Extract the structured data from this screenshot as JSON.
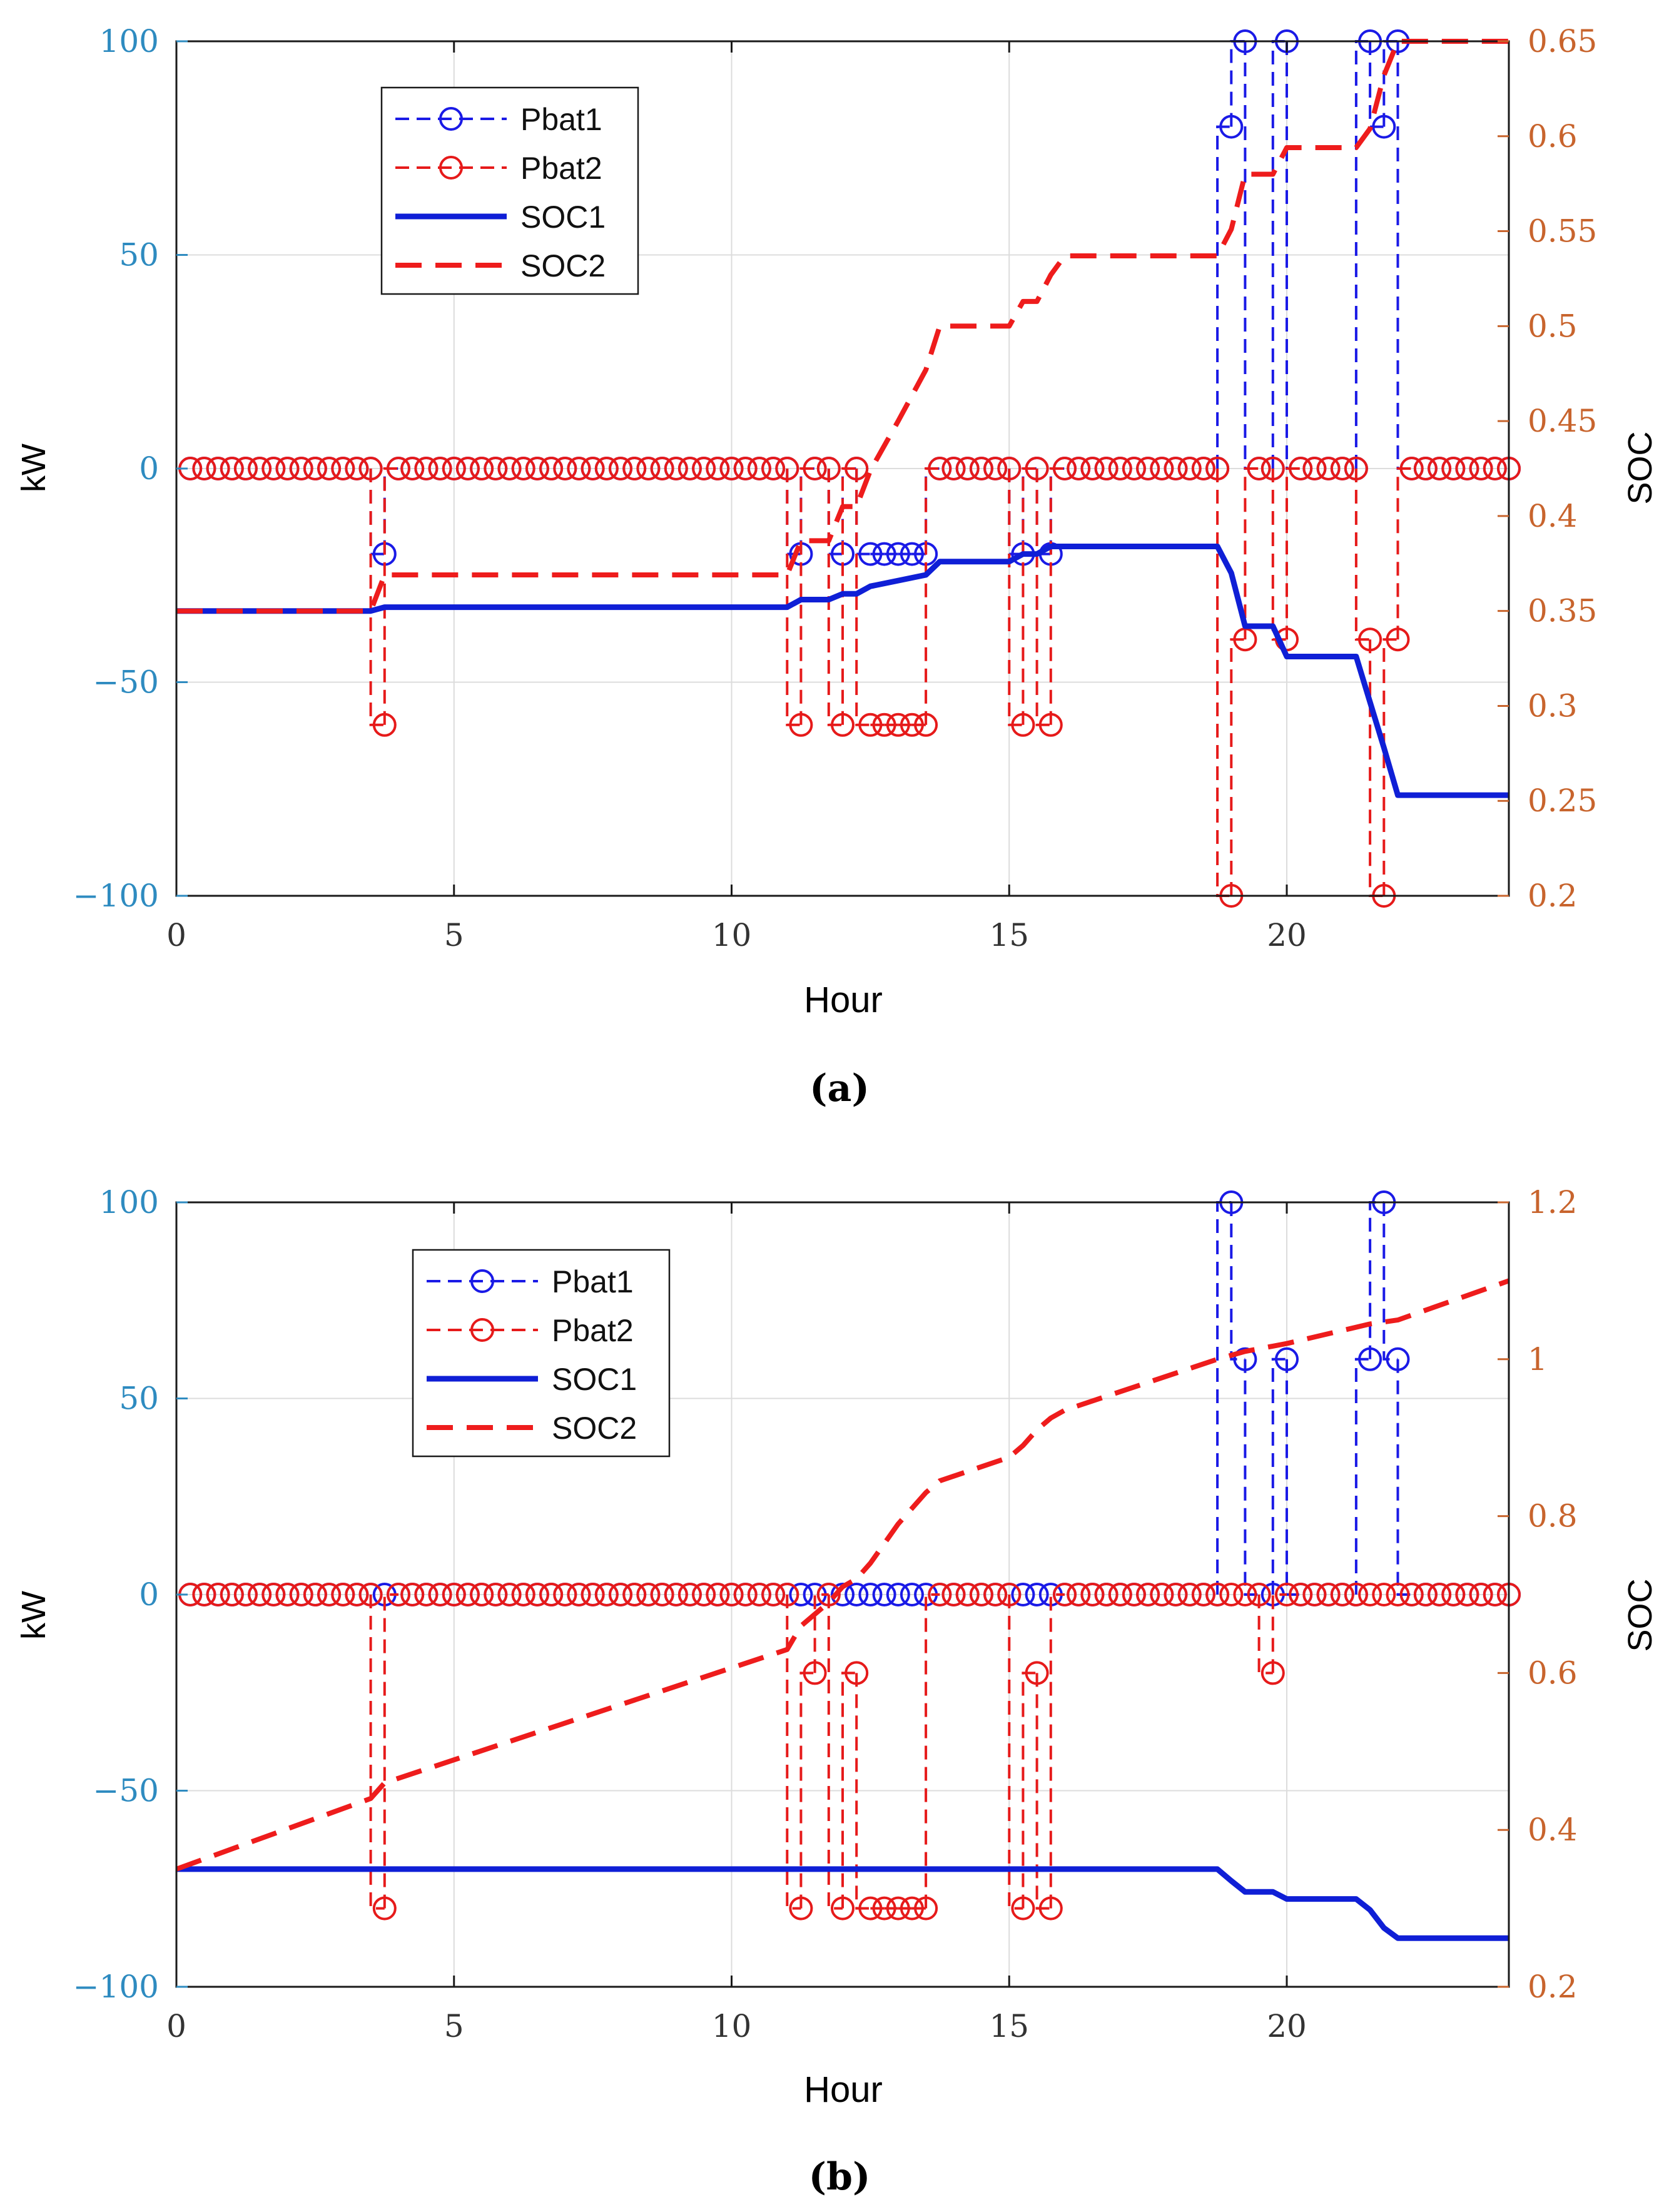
{
  "colors": {
    "left_axis": "#2e8bc0",
    "right_axis": "#c8642d",
    "pbat1": "#1a1ae6",
    "pbat2": "#e61a1a",
    "soc1": "#0f1fd6",
    "soc2": "#ee1c1c",
    "grid": "#dcdcdc",
    "axes": "#1a1a1a"
  },
  "chart_data": [
    {
      "type": "line",
      "caption": "(a)",
      "xlabel": "Hour",
      "ylabel_left": "kW",
      "ylabel_right": "SOC",
      "xlim": [
        0,
        24
      ],
      "xticks": [
        0,
        5,
        10,
        15,
        20
      ],
      "ylim_left": [
        -100,
        100
      ],
      "yticks_left": [
        100,
        50,
        0,
        -50,
        -100
      ],
      "ytick_labels_left": [
        "100",
        "50",
        "0",
        "−50",
        "−100"
      ],
      "ylim_right": [
        0.2,
        0.65
      ],
      "yticks_right": [
        0.65,
        0.6,
        0.55,
        0.5,
        0.45,
        0.4,
        0.35,
        0.3,
        0.25,
        0.2
      ],
      "ytick_labels_right": [
        "0.65",
        "0.6",
        "0.55",
        "0.5",
        "0.45",
        "0.4",
        "0.35",
        "0.3",
        "0.25",
        "0.2"
      ],
      "grid": true,
      "legend_position": "top-left",
      "legend": [
        "Pbat1",
        "Pbat2",
        "SOC1",
        "SOC2"
      ],
      "series": [
        {
          "name": "Pbat1",
          "axis": "left",
          "style": "dashed-circle",
          "points": [
            [
              3.75,
              -20
            ],
            [
              11.25,
              -20
            ],
            [
              12,
              -20
            ],
            [
              12.5,
              -20
            ],
            [
              12.75,
              -20
            ],
            [
              13,
              -20
            ],
            [
              13.25,
              -20
            ],
            [
              13.5,
              -20
            ],
            [
              15.25,
              -20
            ],
            [
              15.75,
              -20
            ],
            [
              19,
              80
            ],
            [
              19.25,
              100
            ],
            [
              20,
              100
            ],
            [
              21.5,
              100
            ],
            [
              21.75,
              80
            ],
            [
              22,
              100
            ]
          ]
        },
        {
          "name": "Pbat2",
          "axis": "left",
          "style": "dashed-circle",
          "points": [
            [
              3.75,
              -60
            ],
            [
              11.25,
              -60
            ],
            [
              11.5,
              0
            ],
            [
              12,
              -60
            ],
            [
              12.25,
              0
            ],
            [
              12.5,
              -60
            ],
            [
              12.75,
              -60
            ],
            [
              13,
              -60
            ],
            [
              13.25,
              -60
            ],
            [
              13.5,
              -60
            ],
            [
              15.25,
              -60
            ],
            [
              15.5,
              0
            ],
            [
              15.75,
              -60
            ],
            [
              19,
              -100
            ],
            [
              19.25,
              -40
            ],
            [
              19.75,
              0
            ],
            [
              20,
              -40
            ],
            [
              21.5,
              -40
            ],
            [
              21.75,
              -100
            ],
            [
              22,
              -40
            ]
          ]
        },
        {
          "name": "SOC1",
          "axis": "right",
          "style": "solid",
          "points": [
            [
              0,
              0.35
            ],
            [
              3.5,
              0.35
            ],
            [
              3.75,
              0.352
            ],
            [
              11,
              0.352
            ],
            [
              11.25,
              0.356
            ],
            [
              11.75,
              0.356
            ],
            [
              12,
              0.359
            ],
            [
              12.25,
              0.359
            ],
            [
              12.5,
              0.363
            ],
            [
              13,
              0.366
            ],
            [
              13.5,
              0.369
            ],
            [
              13.75,
              0.376
            ],
            [
              15,
              0.376
            ],
            [
              15.25,
              0.38
            ],
            [
              15.5,
              0.38
            ],
            [
              15.75,
              0.384
            ],
            [
              18.75,
              0.384
            ],
            [
              19,
              0.37
            ],
            [
              19.25,
              0.342
            ],
            [
              19.75,
              0.342
            ],
            [
              20,
              0.326
            ],
            [
              21.25,
              0.326
            ],
            [
              21.5,
              0.302
            ],
            [
              21.75,
              0.278
            ],
            [
              22,
              0.253
            ],
            [
              24,
              0.253
            ]
          ]
        },
        {
          "name": "SOC2",
          "axis": "right",
          "style": "dashed",
          "points": [
            [
              0,
              0.35
            ],
            [
              3.5,
              0.35
            ],
            [
              3.75,
              0.369
            ],
            [
              11,
              0.369
            ],
            [
              11.25,
              0.387
            ],
            [
              11.75,
              0.387
            ],
            [
              12,
              0.405
            ],
            [
              12.25,
              0.405
            ],
            [
              12.5,
              0.424
            ],
            [
              13,
              0.45
            ],
            [
              13.5,
              0.477
            ],
            [
              13.75,
              0.5
            ],
            [
              15,
              0.5
            ],
            [
              15.25,
              0.513
            ],
            [
              15.5,
              0.513
            ],
            [
              15.75,
              0.527
            ],
            [
              16,
              0.537
            ],
            [
              18.75,
              0.537
            ],
            [
              19,
              0.551
            ],
            [
              19.25,
              0.58
            ],
            [
              19.75,
              0.58
            ],
            [
              20,
              0.594
            ],
            [
              21.25,
              0.594
            ],
            [
              21.5,
              0.604
            ],
            [
              21.75,
              0.632
            ],
            [
              22,
              0.65
            ],
            [
              24,
              0.65
            ]
          ]
        }
      ]
    },
    {
      "type": "line",
      "caption": "(b)",
      "xlabel": "Hour",
      "ylabel_left": "kW",
      "ylabel_right": "SOC",
      "xlim": [
        0,
        24
      ],
      "xticks": [
        0,
        5,
        10,
        15,
        20
      ],
      "ylim_left": [
        -100,
        100
      ],
      "yticks_left": [
        100,
        50,
        0,
        -50,
        -100
      ],
      "ytick_labels_left": [
        "100",
        "50",
        "0",
        "−50",
        "−100"
      ],
      "ylim_right": [
        0.2,
        1.2
      ],
      "yticks_right": [
        1.2,
        1,
        0.8,
        0.6,
        0.4,
        0.2
      ],
      "ytick_labels_right": [
        "1.2",
        "1",
        "0.8",
        "0.6",
        "0.4",
        "0.2"
      ],
      "grid": true,
      "legend_position": "top-left",
      "legend": [
        "Pbat1",
        "Pbat2",
        "SOC1",
        "SOC2"
      ],
      "series": [
        {
          "name": "Pbat1",
          "axis": "left",
          "style": "dashed-circle",
          "points": [
            [
              19,
              100
            ],
            [
              19.25,
              60
            ],
            [
              20,
              60
            ],
            [
              21.5,
              60
            ],
            [
              21.75,
              100
            ],
            [
              22,
              60
            ]
          ]
        },
        {
          "name": "Pbat2",
          "axis": "left",
          "style": "dashed-circle",
          "points": [
            [
              3.75,
              -80
            ],
            [
              11.25,
              -80
            ],
            [
              11.5,
              -20
            ],
            [
              12,
              -80
            ],
            [
              12.25,
              -20
            ],
            [
              12.5,
              -80
            ],
            [
              12.75,
              -80
            ],
            [
              13,
              -80
            ],
            [
              13.25,
              -80
            ],
            [
              13.5,
              -80
            ],
            [
              15.25,
              -80
            ],
            [
              15.5,
              -20
            ],
            [
              15.75,
              -80
            ],
            [
              19,
              0
            ],
            [
              19.25,
              0
            ],
            [
              19.75,
              -20
            ],
            [
              20,
              0
            ],
            [
              21.5,
              0
            ],
            [
              21.75,
              0
            ],
            [
              22,
              0
            ]
          ]
        },
        {
          "name": "SOC1",
          "axis": "right",
          "style": "solid",
          "points": [
            [
              0,
              0.35
            ],
            [
              18.75,
              0.35
            ],
            [
              19,
              0.335
            ],
            [
              19.25,
              0.321
            ],
            [
              19.75,
              0.321
            ],
            [
              20,
              0.312
            ],
            [
              21.25,
              0.312
            ],
            [
              21.5,
              0.298
            ],
            [
              21.75,
              0.275
            ],
            [
              22,
              0.262
            ],
            [
              24,
              0.262
            ]
          ]
        },
        {
          "name": "SOC2",
          "axis": "right",
          "style": "dashed",
          "points": [
            [
              0,
              0.35
            ],
            [
              3.5,
              0.44
            ],
            [
              3.75,
              0.46
            ],
            [
              11,
              0.63
            ],
            [
              11.25,
              0.66
            ],
            [
              11.75,
              0.69
            ],
            [
              12,
              0.71
            ],
            [
              12.25,
              0.72
            ],
            [
              12.5,
              0.74
            ],
            [
              13,
              0.79
            ],
            [
              13.5,
              0.83
            ],
            [
              13.75,
              0.845
            ],
            [
              15,
              0.875
            ],
            [
              15.25,
              0.89
            ],
            [
              15.5,
              0.91
            ],
            [
              15.75,
              0.925
            ],
            [
              16,
              0.935
            ],
            [
              18.75,
              1.0
            ],
            [
              19,
              1.005
            ],
            [
              19.25,
              1.01
            ],
            [
              20,
              1.02
            ],
            [
              21.5,
              1.045
            ],
            [
              22,
              1.05
            ],
            [
              24,
              1.1
            ]
          ]
        }
      ]
    }
  ]
}
